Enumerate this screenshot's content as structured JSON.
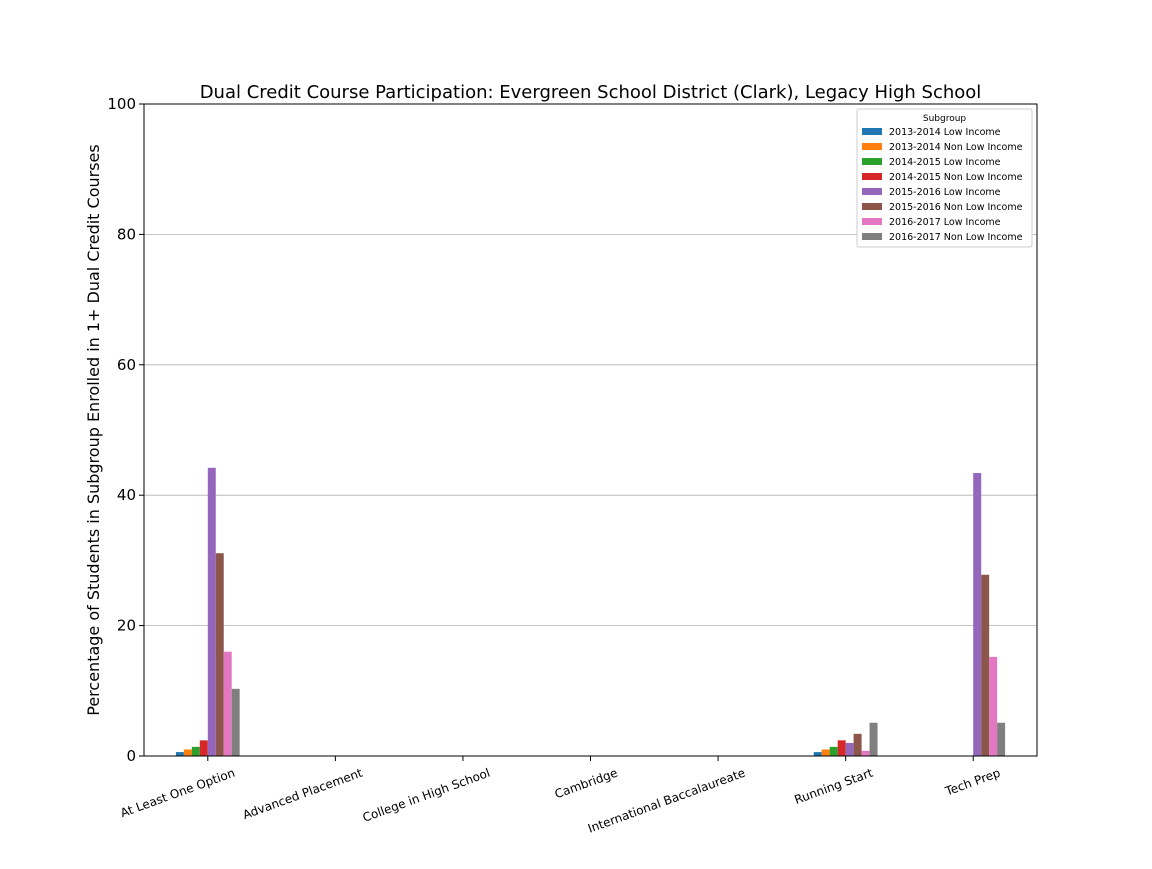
{
  "chart_data": {
    "type": "bar",
    "title": "Dual Credit Course Participation: Evergreen School District (Clark), Legacy High School",
    "xlabel": "",
    "ylabel": "Percentage of Students in Subgroup Enrolled in 1+ Dual Credit Courses",
    "ylim": [
      0,
      100
    ],
    "yticks": [
      "0",
      "20",
      "40",
      "60",
      "80",
      "100"
    ],
    "grid": "horizontal",
    "legend": {
      "title": "Subgroup",
      "placement": "top-right"
    },
    "categories": [
      "At Least One Option",
      "Advanced Placement",
      "College in High School",
      "Cambridge",
      "International Baccalaureate",
      "Running Start",
      "Tech Prep"
    ],
    "series": [
      {
        "name": "2013-2014 Low Income",
        "color": "#1f77b4",
        "values": [
          0.6,
          0,
          0,
          0,
          0,
          0.6,
          0
        ]
      },
      {
        "name": "2013-2014 Non Low Income",
        "color": "#ff7f0e",
        "values": [
          1.0,
          0,
          0,
          0,
          0,
          1.0,
          0
        ]
      },
      {
        "name": "2014-2015 Low Income",
        "color": "#2ca02c",
        "values": [
          1.4,
          0,
          0,
          0,
          0,
          1.4,
          0
        ]
      },
      {
        "name": "2014-2015 Non Low Income",
        "color": "#d62728",
        "values": [
          2.4,
          0,
          0,
          0,
          0,
          2.4,
          0
        ]
      },
      {
        "name": "2015-2016 Low Income",
        "color": "#9467bd",
        "values": [
          44.2,
          0,
          0,
          0,
          0,
          2.0,
          43.4
        ]
      },
      {
        "name": "2015-2016 Non Low Income",
        "color": "#8c564b",
        "values": [
          31.1,
          0,
          0,
          0,
          0,
          3.4,
          27.8
        ]
      },
      {
        "name": "2016-2017 Low Income",
        "color": "#e377c2",
        "values": [
          16.0,
          0,
          0,
          0,
          0,
          0.8,
          15.2
        ]
      },
      {
        "name": "2016-2017 Non Low Income",
        "color": "#7f7f7f",
        "values": [
          10.3,
          0,
          0,
          0,
          0,
          5.1,
          5.1
        ]
      }
    ]
  }
}
